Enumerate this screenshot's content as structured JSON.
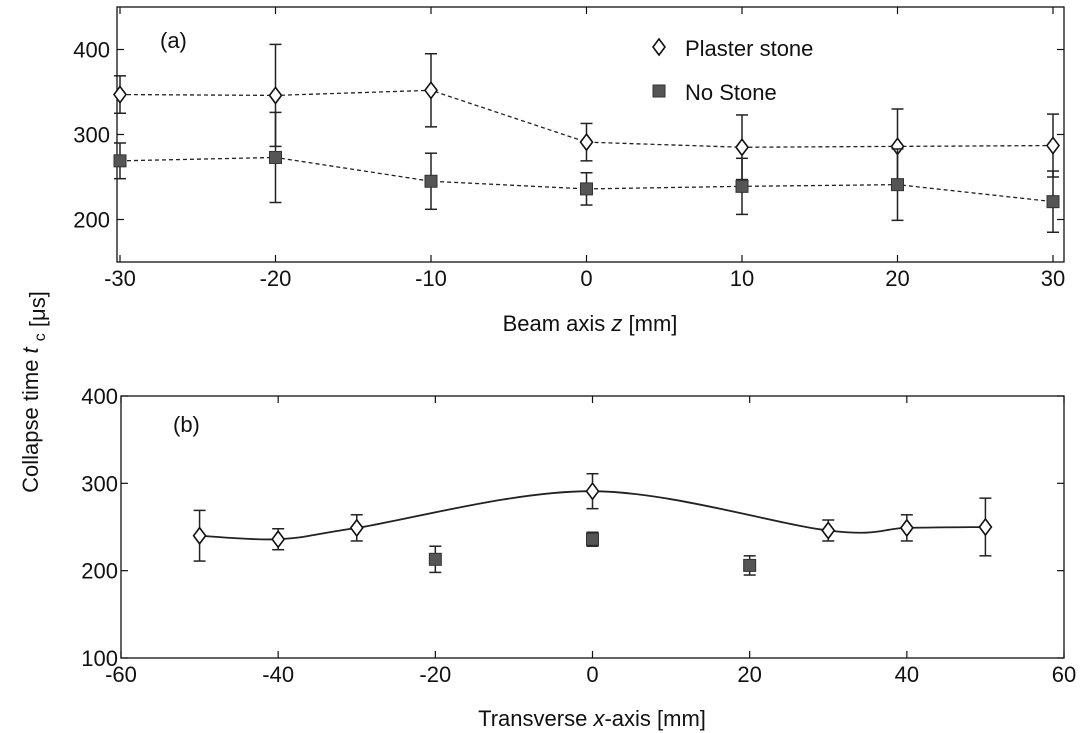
{
  "figure": {
    "ylabel_main": "Collapse time",
    "ylabel_symbol": "t",
    "ylabel_subscript": "c",
    "ylabel_unit": "[μs]"
  },
  "legend": {
    "items": [
      {
        "label": "Plaster stone",
        "marker": "open-diamond"
      },
      {
        "label": "No Stone",
        "marker": "filled-square"
      }
    ]
  },
  "colors": {
    "ink": "#111111",
    "marker_fill": "#555555"
  },
  "chart_data": [
    {
      "type": "line",
      "panel_label": "(a)",
      "xlabel": "Beam axis z [mm]",
      "xlabel_parts": {
        "prefix": "Beam axis ",
        "variable": "z",
        "suffix": " [mm]"
      },
      "xlim": [
        -30,
        30
      ],
      "ylim": [
        150,
        450
      ],
      "xticks": [
        -30,
        -20,
        -10,
        0,
        10,
        20,
        30
      ],
      "yticks": [
        200,
        300,
        400
      ],
      "grid": false,
      "legend_position": "top-right",
      "series": [
        {
          "name": "Plaster stone",
          "marker": "open-diamond",
          "line": "dashed",
          "x": [
            -30,
            -20,
            -10,
            0,
            10,
            20,
            30
          ],
          "y": [
            347,
            346,
            352,
            291,
            285,
            286,
            287
          ],
          "err": [
            22,
            60,
            43,
            22,
            38,
            44,
            37
          ]
        },
        {
          "name": "No Stone",
          "marker": "filled-square",
          "line": "dashed",
          "x": [
            -30,
            -20,
            -10,
            0,
            10,
            20,
            30
          ],
          "y": [
            269,
            273,
            245,
            236,
            239,
            241,
            221
          ],
          "err": [
            21,
            53,
            33,
            19,
            33,
            42,
            36
          ]
        }
      ]
    },
    {
      "type": "line",
      "panel_label": "(b)",
      "xlabel": "Transverse x-axis [mm]",
      "xlabel_parts": {
        "prefix": "Transverse ",
        "variable": "x",
        "suffix": "-axis [mm]"
      },
      "xlim": [
        -60,
        60
      ],
      "ylim": [
        100,
        400
      ],
      "xticks": [
        -60,
        -40,
        -20,
        0,
        20,
        40,
        60
      ],
      "yticks": [
        100,
        200,
        300,
        400
      ],
      "grid": false,
      "series": [
        {
          "name": "Plaster stone",
          "marker": "open-diamond",
          "line": "solid",
          "x": [
            -50,
            -40,
            -30,
            0,
            30,
            40,
            50
          ],
          "y": [
            240,
            236,
            249,
            291,
            246,
            249,
            250
          ],
          "err": [
            29,
            12,
            15,
            20,
            12,
            15,
            33
          ]
        },
        {
          "name": "No Stone",
          "marker": "filled-square",
          "line": "none",
          "x": [
            -20,
            0,
            20
          ],
          "y": [
            213,
            236,
            206
          ],
          "err": [
            15,
            8,
            11
          ]
        }
      ]
    }
  ]
}
